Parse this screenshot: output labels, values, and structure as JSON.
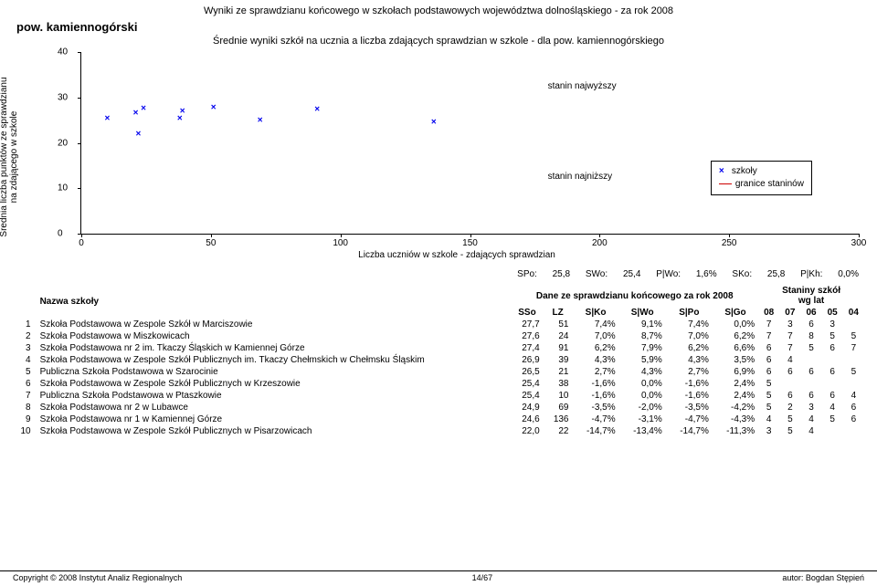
{
  "header": {
    "page_title": "Wyniki ze sprawdzianu końcowego w szkołach podstawowych województwa dolnośląskiego - za rok 2008",
    "district": "pow. kamiennogórski",
    "subtitle": "Średnie wyniki szkół na ucznia a liczba zdających sprawdzian w szkole - dla pow. kamiennogórskiego"
  },
  "chart": {
    "type": "scatter",
    "y_label": "Średnia liczba punktów ze sprawdzianu\nna zdającego w szkole",
    "x_label": "Liczba uczniów w szkole - zdających sprawdzian",
    "xlim": [
      0,
      300
    ],
    "ylim": [
      0,
      40
    ],
    "xticks": [
      0,
      50,
      100,
      150,
      200,
      250,
      300
    ],
    "yticks": [
      0,
      10,
      20,
      30,
      40
    ],
    "marker_color": "#0000ee",
    "annotation_high": "stanin najwyższy",
    "annotation_low": "stanin najniższy",
    "legend_schools": "szkoły",
    "legend_bounds": "granice staninów",
    "points": [
      {
        "x": 10,
        "y": 25.4
      },
      {
        "x": 21,
        "y": 26.5
      },
      {
        "x": 22,
        "y": 22.0
      },
      {
        "x": 24,
        "y": 27.6
      },
      {
        "x": 38,
        "y": 25.4
      },
      {
        "x": 39,
        "y": 26.9
      },
      {
        "x": 51,
        "y": 27.7
      },
      {
        "x": 69,
        "y": 24.9
      },
      {
        "x": 91,
        "y": 27.4
      },
      {
        "x": 136,
        "y": 24.6
      }
    ]
  },
  "stats": {
    "SPo_label": "SPo:",
    "SPo": "25,8",
    "SWo_label": "SWo:",
    "SWo": "25,4",
    "PWo_label": "P|Wo:",
    "PWo": "1,6%",
    "SKo_label": "SKo:",
    "SKo": "25,8",
    "PKh_label": "P|Kh:",
    "PKh": "0,0%"
  },
  "table": {
    "name_header": "Nazwa szkoły",
    "group1": "Dane ze sprawdzianu końcowego za rok 2008",
    "group2": "Staniny szkół\nwg lat",
    "cols": [
      "SSo",
      "LZ",
      "S|Ko",
      "S|Wo",
      "S|Po",
      "S|Go"
    ],
    "year_cols": [
      "08",
      "07",
      "06",
      "05",
      "04"
    ],
    "rows": [
      {
        "n": 1,
        "name": "Szkoła Podstawowa w Zespole Szkół w Marciszowie",
        "sso": "27,7",
        "lz": "51",
        "sko": "7,4%",
        "swo": "9,1%",
        "spo": "7,4%",
        "sgo": "0,0%",
        "st": [
          "7",
          "3",
          "6",
          "3",
          ""
        ]
      },
      {
        "n": 2,
        "name": "Szkoła Podstawowa w Miszkowicach",
        "sso": "27,6",
        "lz": "24",
        "sko": "7,0%",
        "swo": "8,7%",
        "spo": "7,0%",
        "sgo": "6,2%",
        "st": [
          "7",
          "7",
          "8",
          "5",
          "5"
        ]
      },
      {
        "n": 3,
        "name": "Szkoła Podstawowa nr 2 im. Tkaczy Śląskich w Kamiennej Górze",
        "sso": "27,4",
        "lz": "91",
        "sko": "6,2%",
        "swo": "7,9%",
        "spo": "6,2%",
        "sgo": "6,6%",
        "st": [
          "6",
          "7",
          "5",
          "6",
          "7"
        ]
      },
      {
        "n": 4,
        "name": "Szkoła Podstawowa w Zespole Szkół Publicznych im. Tkaczy Chełmskich w Chełmsku Śląskim",
        "sso": "26,9",
        "lz": "39",
        "sko": "4,3%",
        "swo": "5,9%",
        "spo": "4,3%",
        "sgo": "3,5%",
        "st": [
          "6",
          "4",
          "",
          "",
          ""
        ]
      },
      {
        "n": 5,
        "name": "Publiczna Szkoła Podstawowa w Szarocinie",
        "sso": "26,5",
        "lz": "21",
        "sko": "2,7%",
        "swo": "4,3%",
        "spo": "2,7%",
        "sgo": "6,9%",
        "st": [
          "6",
          "6",
          "6",
          "6",
          "5"
        ]
      },
      {
        "n": 6,
        "name": "Szkoła Podstawowa w Zespole Szkół Publicznych w Krzeszowie",
        "sso": "25,4",
        "lz": "38",
        "sko": "-1,6%",
        "swo": "0,0%",
        "spo": "-1,6%",
        "sgo": "2,4%",
        "st": [
          "5",
          "",
          "",
          "",
          ""
        ]
      },
      {
        "n": 7,
        "name": "Publiczna Szkoła Podstawowa w Ptaszkowie",
        "sso": "25,4",
        "lz": "10",
        "sko": "-1,6%",
        "swo": "0,0%",
        "spo": "-1,6%",
        "sgo": "2,4%",
        "st": [
          "5",
          "6",
          "6",
          "6",
          "4"
        ]
      },
      {
        "n": 8,
        "name": "Szkoła Podstawowa nr 2 w Lubawce",
        "sso": "24,9",
        "lz": "69",
        "sko": "-3,5%",
        "swo": "-2,0%",
        "spo": "-3,5%",
        "sgo": "-4,2%",
        "st": [
          "5",
          "2",
          "3",
          "4",
          "6"
        ]
      },
      {
        "n": 9,
        "name": "Szkoła Podstawowa nr 1 w Kamiennej Górze",
        "sso": "24,6",
        "lz": "136",
        "sko": "-4,7%",
        "swo": "-3,1%",
        "spo": "-4,7%",
        "sgo": "-4,3%",
        "st": [
          "4",
          "5",
          "4",
          "5",
          "6"
        ]
      },
      {
        "n": 10,
        "name": "Szkoła Podstawowa w Zespole Szkół Publicznych w Pisarzowicach",
        "sso": "22,0",
        "lz": "22",
        "sko": "-14,7%",
        "swo": "-13,4%",
        "spo": "-14,7%",
        "sgo": "-11,3%",
        "st": [
          "3",
          "5",
          "4",
          "",
          ""
        ]
      }
    ]
  },
  "footer": {
    "copyright": "Copyright © 2008 Instytut Analiz Regionalnych",
    "page": "14/67",
    "author": "autor: Bogdan Stępień"
  }
}
